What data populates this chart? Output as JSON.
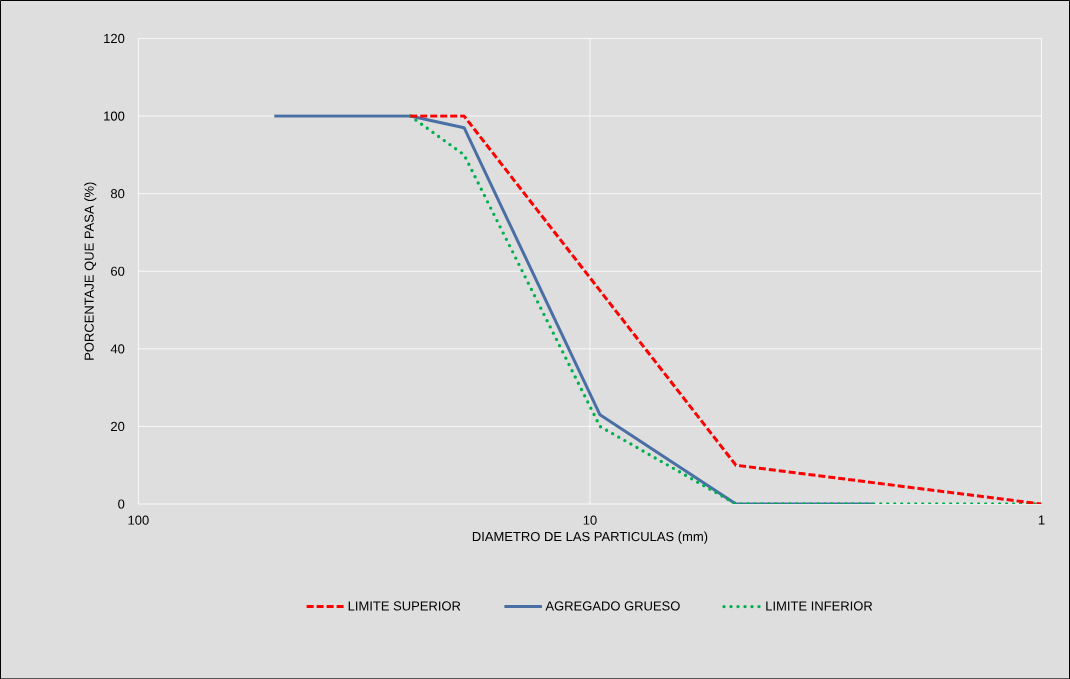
{
  "chart_data": {
    "type": "line",
    "xlabel": "DIAMETRO DE LAS PARTICULAS (mm)",
    "ylabel": "PORCENTAJE QUE PASA (%)",
    "log": "x",
    "xlim": [
      100,
      1
    ],
    "xticks": [
      100,
      10,
      1
    ],
    "ylim": [
      0,
      120
    ],
    "yticks": [
      0,
      20,
      40,
      60,
      80,
      100,
      120
    ],
    "grid": true,
    "legend": "bottom",
    "series": [
      {
        "name": "LIMITE SUPERIOR",
        "color": "#ff0000",
        "line_style": "dashed",
        "x": [
          25,
          19,
          9.5,
          4.75,
          1
        ],
        "values": [
          100,
          100,
          55,
          10,
          0
        ]
      },
      {
        "name": "AGREGADO GRUESO",
        "color": "#4a6fa5",
        "line_style": "solid",
        "x": [
          50,
          25,
          19,
          9.5,
          4.75,
          2.36
        ],
        "values": [
          100,
          100,
          97,
          23,
          0,
          0
        ]
      },
      {
        "name": "LIMITE INFERIOR",
        "color": "#00b050",
        "line_style": "dotted",
        "x": [
          25,
          19,
          9.5,
          4.75,
          1
        ],
        "values": [
          100,
          90,
          20,
          0,
          0
        ]
      }
    ]
  }
}
